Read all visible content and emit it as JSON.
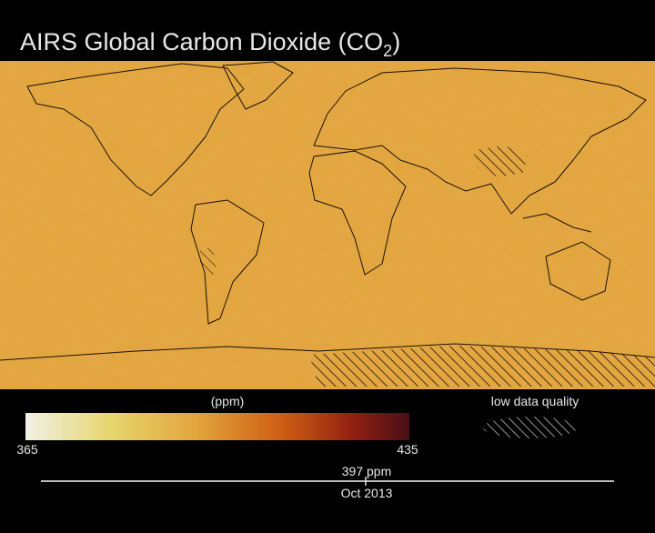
{
  "header": {
    "title": "AIRS Global Carbon Dioxide  (CO",
    "subscript": "2",
    "close": ")"
  },
  "colorbar": {
    "unit": "(ppm)",
    "min": 365,
    "max": 435
  },
  "legend": {
    "hatch": "low data quality"
  },
  "timeline": {
    "value": "397 ppm",
    "date": "Oct 2013"
  }
}
